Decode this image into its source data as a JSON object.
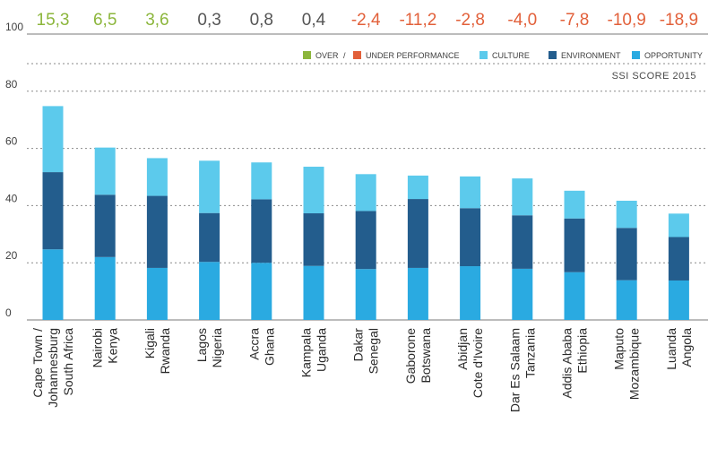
{
  "chart_data": {
    "type": "bar",
    "stacked": true,
    "categories": [
      [
        "Cape Town /",
        "Johannesburg",
        "South Africa"
      ],
      [
        "Nairobi",
        "Kenya"
      ],
      [
        "Kigali",
        "Rwanda"
      ],
      [
        "Lagos",
        "Nigeria"
      ],
      [
        "Accra",
        "Ghana"
      ],
      [
        "Kampala",
        "Uganda"
      ],
      [
        "Dakar",
        "Senegal"
      ],
      [
        "Gaborone",
        "Botswana"
      ],
      [
        "Abidjan",
        "Cote d'Ivoire"
      ],
      [
        "Dar Es Salaam",
        "Tanzania"
      ],
      [
        "Addis Ababa",
        "Ethiopia"
      ],
      [
        "Maputo",
        "Mozambique"
      ],
      [
        "Luanda",
        "Angola"
      ]
    ],
    "series": [
      {
        "name": "OPPORTUNITY",
        "color": "#2aaae1",
        "values": [
          24.7,
          22,
          18.2,
          20.3,
          20,
          18.9,
          17.8,
          18.2,
          18.8,
          17.9,
          16.7,
          13.9,
          13.8
        ]
      },
      {
        "name": "ENVIRONMENT",
        "color": "#235d8d",
        "values": [
          27,
          21.8,
          25.2,
          17.1,
          22.2,
          18.4,
          20.3,
          24.1,
          20.3,
          18.7,
          18.8,
          18.3,
          15.2
        ]
      },
      {
        "name": "CULTURE",
        "color": "#5ccaec",
        "values": [
          23.1,
          16.5,
          13.2,
          18.3,
          12.9,
          16.3,
          12.9,
          8.2,
          11.1,
          12.9,
          9.7,
          9.5,
          8.2
        ]
      }
    ],
    "performance": [
      {
        "label": "15,3",
        "status": "over"
      },
      {
        "label": "6,5",
        "status": "over"
      },
      {
        "label": "3,6",
        "status": "over"
      },
      {
        "label": "0,3",
        "status": "neutral"
      },
      {
        "label": "0,8",
        "status": "neutral"
      },
      {
        "label": "0,4",
        "status": "neutral"
      },
      {
        "label": "-2,4",
        "status": "under"
      },
      {
        "label": "-11,2",
        "status": "under"
      },
      {
        "label": "-2,8",
        "status": "under"
      },
      {
        "label": "-4,0",
        "status": "under"
      },
      {
        "label": "-7,8",
        "status": "under"
      },
      {
        "label": "-10,9",
        "status": "under"
      },
      {
        "label": "-18,9",
        "status": "under"
      }
    ],
    "status_colors": {
      "over": "#8cb63c",
      "under": "#e2603a",
      "neutral": "#555555"
    },
    "legend": {
      "over": {
        "label": "OVER",
        "color": "#8cb63c"
      },
      "separator": "/",
      "under": {
        "label": "UNDER PERFORMANCE",
        "color": "#e2603a"
      },
      "placement": "top-right"
    },
    "legend_title": "SSI SCORE 2015",
    "yticks": [
      "0",
      "20",
      "40",
      "60",
      "80",
      "100"
    ],
    "ylim": [
      0,
      100
    ],
    "grid": "dotted",
    "xlabel": "",
    "ylabel": ""
  }
}
